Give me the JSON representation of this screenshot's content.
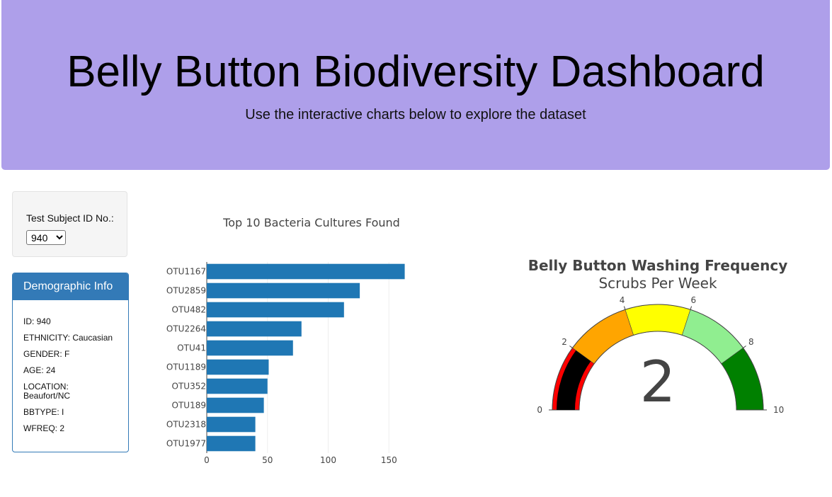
{
  "header": {
    "title": "Belly Button Biodiversity Dashboard",
    "subtitle": "Use the interactive charts below to explore the dataset"
  },
  "selector": {
    "label": "Test Subject ID No.:",
    "selected": "940"
  },
  "demographics": {
    "heading": "Demographic Info",
    "rows": [
      "ID: 940",
      "ETHNICITY: Caucasian",
      "GENDER: F",
      "AGE: 24",
      "LOCATION: Beaufort/NC",
      "BBTYPE: I",
      "WFREQ: 2"
    ]
  },
  "colors": {
    "header_bg": "#ae9fea",
    "panel": "#337ab7",
    "bar": "#1f77b4"
  },
  "chart_data": [
    {
      "type": "bar",
      "orientation": "horizontal",
      "title": "Top 10 Bacteria Cultures Found",
      "categories": [
        "OTU1167",
        "OTU2859",
        "OTU482",
        "OTU2264",
        "OTU41",
        "OTU1189",
        "OTU352",
        "OTU189",
        "OTU2318",
        "OTU1977"
      ],
      "values": [
        163,
        126,
        113,
        78,
        71,
        51,
        50,
        47,
        40,
        40
      ],
      "xlim": [
        0,
        165
      ],
      "xticks": [
        0,
        50,
        100,
        150
      ],
      "xlabel": "",
      "ylabel": "",
      "grid": true
    },
    {
      "type": "gauge",
      "title": "Belly Button Washing Frequency",
      "subtitle": "Scrubs Per Week",
      "value": 2,
      "range": [
        0,
        10
      ],
      "ticks": [
        0,
        2,
        4,
        6,
        8,
        10
      ],
      "steps": [
        {
          "range": [
            0,
            2
          ],
          "color": "#ff0000"
        },
        {
          "range": [
            2,
            4
          ],
          "color": "#ffa500"
        },
        {
          "range": [
            4,
            6
          ],
          "color": "#ffff00"
        },
        {
          "range": [
            6,
            8
          ],
          "color": "#90ee90"
        },
        {
          "range": [
            8,
            10
          ],
          "color": "#008000"
        }
      ],
      "bar_color": "#000000"
    }
  ]
}
